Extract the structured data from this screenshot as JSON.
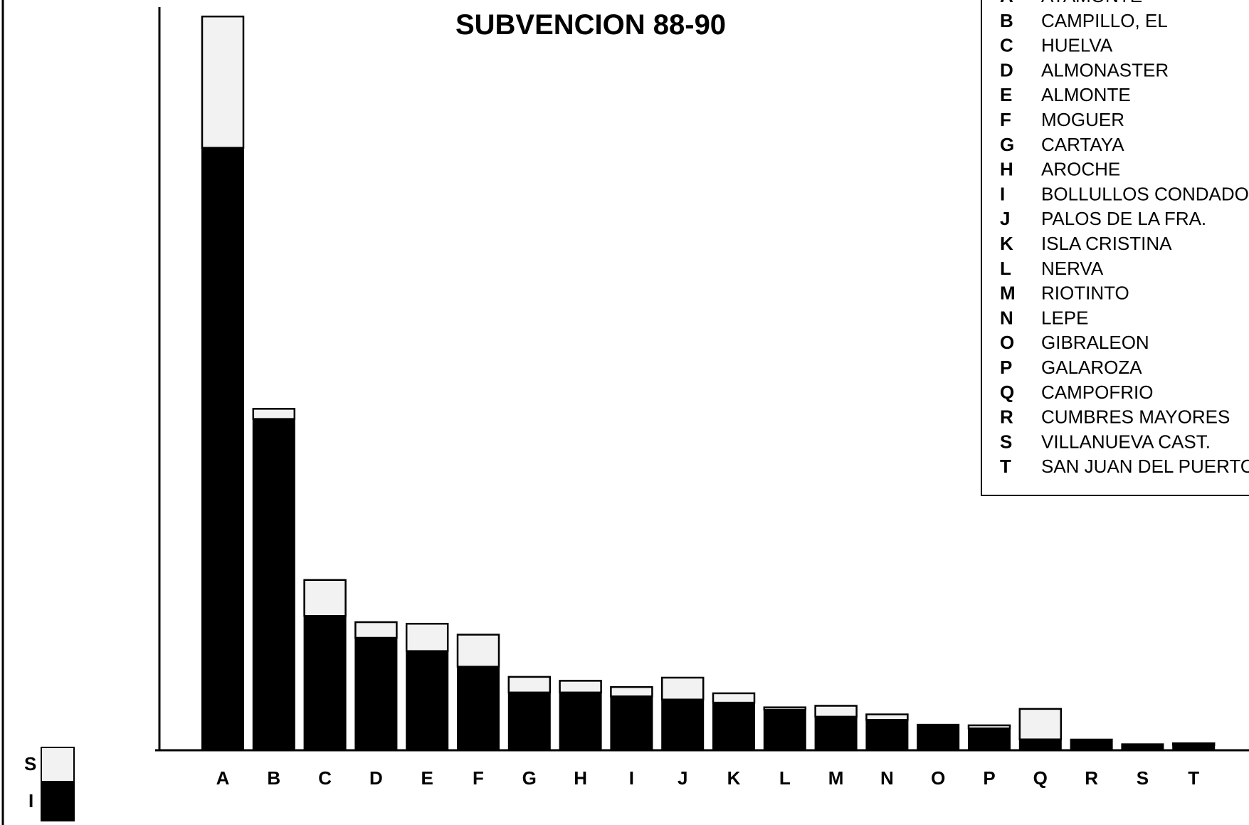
{
  "chart_data": {
    "type": "bar",
    "stacked": true,
    "title": "SUBVENCION 88-90",
    "xlabel": "",
    "ylabel": "",
    "categories": [
      "A",
      "B",
      "C",
      "D",
      "E",
      "F",
      "G",
      "H",
      "I",
      "J",
      "K",
      "L",
      "M",
      "N",
      "O",
      "P",
      "Q",
      "R",
      "S",
      "T"
    ],
    "series": [
      {
        "name": "I",
        "values": [
          770,
          423,
          171,
          143,
          126,
          106,
          73,
          73,
          68,
          64,
          60,
          51,
          42,
          38,
          32,
          27,
          13,
          13,
          7,
          6
        ]
      },
      {
        "name": "S",
        "values": [
          168,
          13,
          46,
          20,
          35,
          41,
          20,
          15,
          12,
          28,
          12,
          3,
          14,
          7,
          0,
          4,
          39,
          0,
          0,
          2
        ]
      }
    ],
    "ylim": [
      0,
      950
    ],
    "grid": false,
    "colors": {
      "I": "#000000",
      "S": "#f2f2f2",
      "axis": "#000000"
    },
    "key": {
      "title_left": "",
      "entries": [
        {
          "code": "A",
          "name": "AYAMONTE"
        },
        {
          "code": "B",
          "name": "CAMPILLO, EL"
        },
        {
          "code": "C",
          "name": "HUELVA"
        },
        {
          "code": "D",
          "name": "ALMONASTER"
        },
        {
          "code": "E",
          "name": "ALMONTE"
        },
        {
          "code": "F",
          "name": "MOGUER"
        },
        {
          "code": "G",
          "name": "CARTAYA"
        },
        {
          "code": "H",
          "name": "AROCHE"
        },
        {
          "code": "I",
          "name": "BOLLULLOS CONDADO"
        },
        {
          "code": "J",
          "name": "PALOS DE LA FRA."
        },
        {
          "code": "K",
          "name": "ISLA CRISTINA"
        },
        {
          "code": "L",
          "name": "NERVA"
        },
        {
          "code": "M",
          "name": "RIOTINTO"
        },
        {
          "code": "N",
          "name": "LEPE"
        },
        {
          "code": "O",
          "name": "GIBRALEON"
        },
        {
          "code": "P",
          "name": "GALAROZA"
        },
        {
          "code": "Q",
          "name": "CAMPOFRIO"
        },
        {
          "code": "R",
          "name": "CUMBRES MAYORES"
        },
        {
          "code": "S",
          "name": "VILLANUEVA CAST."
        },
        {
          "code": "T",
          "name": "SAN JUAN DEL PUERTO"
        }
      ]
    },
    "series_legend": {
      "placement": "bottom-left",
      "labels": [
        "S",
        "I"
      ]
    }
  }
}
